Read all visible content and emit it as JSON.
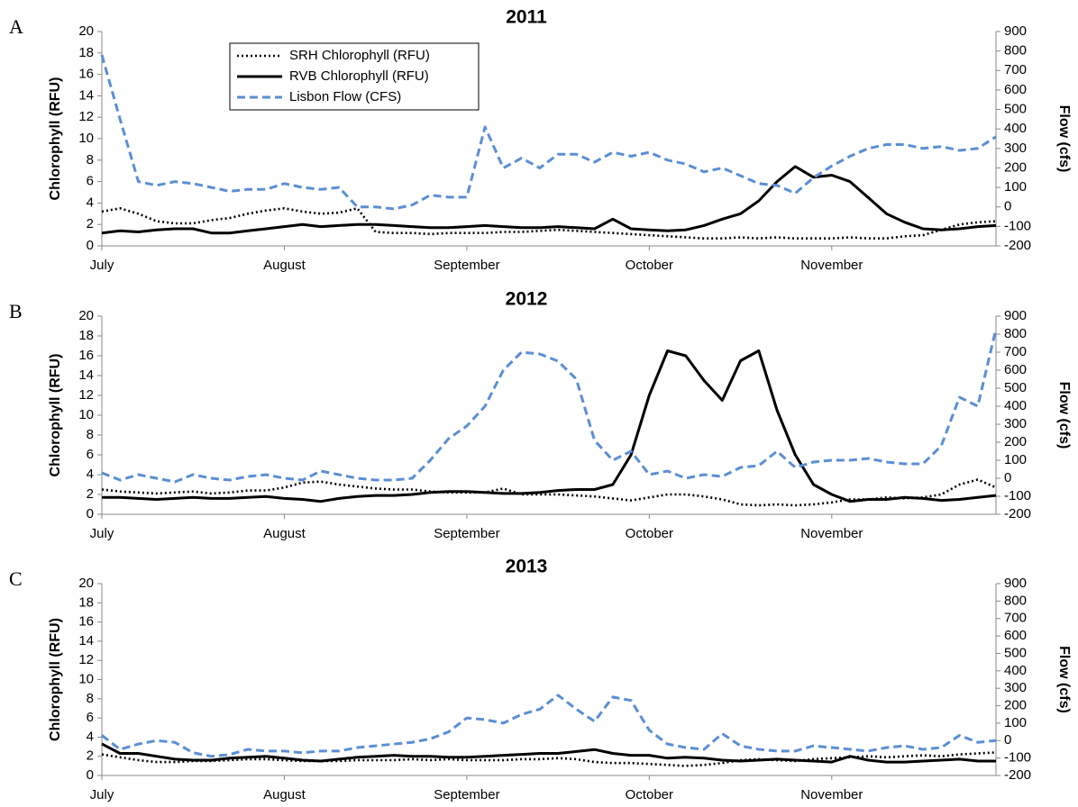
{
  "chart_data": [
    {
      "type": "line",
      "panel": "A",
      "title": "2011",
      "ylabel": "Chlorophyll (RFU)",
      "y2label": "Flow (cfs)",
      "legend": "upper left",
      "categories": [
        "July",
        null,
        null,
        null,
        null,
        null,
        null,
        null,
        null,
        null,
        "August",
        null,
        null,
        null,
        null,
        null,
        null,
        null,
        null,
        null,
        "September",
        null,
        null,
        null,
        null,
        null,
        null,
        null,
        null,
        null,
        "October",
        null,
        null,
        null,
        null,
        null,
        null,
        null,
        null,
        null,
        "November",
        null,
        null,
        null,
        null,
        null,
        null,
        null,
        null,
        null
      ],
      "ylim": [
        0,
        20
      ],
      "yticks": [
        0,
        2,
        4,
        6,
        8,
        10,
        12,
        14,
        16,
        18,
        20
      ],
      "y2lim": [
        -200,
        900
      ],
      "y2ticks": [
        -200,
        -100,
        0,
        100,
        200,
        300,
        400,
        500,
        600,
        700,
        800,
        900
      ],
      "series": [
        {
          "name": "SRH Chlorophyll (RFU)",
          "color": "#000000",
          "style": "dotted",
          "values": [
            3.2,
            3.5,
            3.0,
            2.3,
            2.1,
            2.1,
            2.4,
            2.6,
            3.0,
            3.3,
            3.5,
            3.2,
            3.0,
            3.1,
            3.5,
            1.3,
            1.2,
            1.2,
            1.1,
            1.2,
            1.2,
            1.2,
            1.3,
            1.3,
            1.4,
            1.5,
            1.4,
            1.3,
            1.2,
            1.1,
            1.0,
            0.9,
            0.8,
            0.7,
            0.7,
            0.8,
            0.7,
            0.8,
            0.7,
            0.7,
            0.7,
            0.8,
            0.7,
            0.7,
            0.9,
            1.0,
            1.5,
            2.0,
            2.2,
            2.3
          ]
        },
        {
          "name": "RVB Chlorophyll (RFU)",
          "color": "#000000",
          "style": "solid",
          "values": [
            1.2,
            1.4,
            1.3,
            1.5,
            1.6,
            1.6,
            1.2,
            1.2,
            1.4,
            1.6,
            1.8,
            2.0,
            1.8,
            1.9,
            2.0,
            2.0,
            1.9,
            1.8,
            1.7,
            1.7,
            1.8,
            1.9,
            1.8,
            1.7,
            1.7,
            1.8,
            1.7,
            1.6,
            2.5,
            1.6,
            1.5,
            1.4,
            1.5,
            1.9,
            2.5,
            3.0,
            4.2,
            6.0,
            7.4,
            6.4,
            6.6,
            6.0,
            4.5,
            3.0,
            2.2,
            1.6,
            1.5,
            1.6,
            1.8,
            1.9
          ]
        },
        {
          "name": "Lisbon Flow (CFS)",
          "color": "#5b8ed4",
          "style": "dashed",
          "axis": "y2",
          "values": [
            780,
            450,
            130,
            110,
            130,
            120,
            100,
            80,
            90,
            90,
            120,
            100,
            90,
            100,
            0,
            0,
            -10,
            10,
            60,
            50,
            50,
            410,
            200,
            250,
            200,
            270,
            270,
            230,
            280,
            260,
            280,
            240,
            220,
            180,
            200,
            160,
            120,
            110,
            70,
            150,
            210,
            260,
            300,
            320,
            320,
            300,
            310,
            290,
            300,
            360
          ]
        }
      ]
    },
    {
      "type": "line",
      "panel": "B",
      "title": "2012",
      "ylabel": "Chlorophyll (RFU)",
      "y2label": "Flow (cfs)",
      "categories": [
        "July",
        null,
        null,
        null,
        null,
        null,
        null,
        null,
        null,
        null,
        "August",
        null,
        null,
        null,
        null,
        null,
        null,
        null,
        null,
        null,
        "September",
        null,
        null,
        null,
        null,
        null,
        null,
        null,
        null,
        null,
        "October",
        null,
        null,
        null,
        null,
        null,
        null,
        null,
        null,
        null,
        "November",
        null,
        null,
        null,
        null,
        null,
        null,
        null,
        null,
        null
      ],
      "ylim": [
        0,
        20
      ],
      "yticks": [
        0,
        2,
        4,
        6,
        8,
        10,
        12,
        14,
        16,
        18,
        20
      ],
      "y2lim": [
        -200,
        900
      ],
      "y2ticks": [
        -200,
        -100,
        0,
        100,
        200,
        300,
        400,
        500,
        600,
        700,
        800,
        900
      ],
      "series": [
        {
          "color": "#000000",
          "style": "dotted",
          "values": [
            2.5,
            2.3,
            2.2,
            2.1,
            2.2,
            2.3,
            2.1,
            2.2,
            2.4,
            2.4,
            2.7,
            3.2,
            3.3,
            3.0,
            2.8,
            2.6,
            2.5,
            2.5,
            2.3,
            2.2,
            2.2,
            2.2,
            2.6,
            2.0,
            2.0,
            2.0,
            1.9,
            1.8,
            1.6,
            1.4,
            1.7,
            2.0,
            2.0,
            1.8,
            1.5,
            1.0,
            0.9,
            1.0,
            0.9,
            1.0,
            1.2,
            1.5,
            1.5,
            1.7,
            1.6,
            1.7,
            2.0,
            3.0,
            3.5,
            2.7
          ]
        },
        {
          "color": "#000000",
          "style": "solid",
          "values": [
            1.7,
            1.7,
            1.6,
            1.5,
            1.6,
            1.7,
            1.6,
            1.6,
            1.7,
            1.8,
            1.6,
            1.5,
            1.3,
            1.6,
            1.8,
            1.9,
            1.9,
            2.0,
            2.2,
            2.3,
            2.3,
            2.2,
            2.1,
            2.1,
            2.2,
            2.4,
            2.5,
            2.5,
            3.0,
            6.0,
            12.0,
            16.5,
            16.0,
            13.5,
            11.5,
            15.5,
            16.5,
            10.5,
            6.0,
            3.0,
            2.0,
            1.3,
            1.5,
            1.5,
            1.7,
            1.6,
            1.4,
            1.5,
            1.7,
            1.9
          ]
        },
        {
          "color": "#5b8ed4",
          "style": "dashed",
          "axis": "y2",
          "values": [
            30,
            -10,
            20,
            0,
            -20,
            20,
            0,
            -10,
            10,
            20,
            0,
            -10,
            40,
            20,
            0,
            -10,
            -10,
            0,
            100,
            220,
            290,
            400,
            600,
            700,
            690,
            650,
            550,
            210,
            100,
            150,
            20,
            40,
            0,
            20,
            10,
            60,
            70,
            150,
            60,
            90,
            100,
            100,
            110,
            90,
            80,
            80,
            180,
            450,
            400,
            830
          ]
        }
      ]
    },
    {
      "type": "line",
      "panel": "C",
      "title": "2013",
      "ylabel": "Chlorophyll (RFU)",
      "y2label": "Flow (cfs)",
      "categories": [
        "July",
        null,
        null,
        null,
        null,
        null,
        null,
        null,
        null,
        null,
        "August",
        null,
        null,
        null,
        null,
        null,
        null,
        null,
        null,
        null,
        "September",
        null,
        null,
        null,
        null,
        null,
        null,
        null,
        null,
        null,
        "October",
        null,
        null,
        null,
        null,
        null,
        null,
        null,
        null,
        null,
        "November",
        null,
        null,
        null,
        null,
        null,
        null,
        null,
        null,
        null
      ],
      "ylim": [
        0,
        20
      ],
      "yticks": [
        0,
        2,
        4,
        6,
        8,
        10,
        12,
        14,
        16,
        18,
        20
      ],
      "y2lim": [
        -200,
        900
      ],
      "y2ticks": [
        -200,
        -100,
        0,
        100,
        200,
        300,
        400,
        500,
        600,
        700,
        800,
        900
      ],
      "series": [
        {
          "color": "#000000",
          "style": "dotted",
          "values": [
            2.2,
            1.9,
            1.6,
            1.4,
            1.4,
            1.5,
            1.5,
            1.6,
            1.7,
            1.7,
            1.6,
            1.5,
            1.5,
            1.5,
            1.6,
            1.6,
            1.6,
            1.7,
            1.6,
            1.7,
            1.6,
            1.6,
            1.6,
            1.7,
            1.7,
            1.8,
            1.7,
            1.4,
            1.3,
            1.3,
            1.2,
            1.1,
            1.0,
            1.1,
            1.3,
            1.6,
            1.7,
            1.6,
            1.5,
            1.7,
            1.8,
            1.9,
            2.0,
            1.9,
            2.0,
            2.1,
            2.0,
            2.2,
            2.3,
            2.4
          ]
        },
        {
          "color": "#000000",
          "style": "solid",
          "values": [
            3.3,
            2.3,
            2.3,
            2.0,
            1.7,
            1.6,
            1.6,
            1.8,
            1.9,
            2.0,
            1.8,
            1.6,
            1.5,
            1.7,
            1.9,
            2.0,
            2.1,
            2.0,
            2.0,
            1.9,
            1.9,
            2.0,
            2.1,
            2.2,
            2.3,
            2.3,
            2.5,
            2.7,
            2.3,
            2.1,
            2.1,
            1.8,
            1.9,
            1.8,
            1.6,
            1.5,
            1.6,
            1.7,
            1.6,
            1.5,
            1.4,
            2.0,
            1.6,
            1.4,
            1.4,
            1.5,
            1.6,
            1.7,
            1.5,
            1.5
          ]
        },
        {
          "color": "#5b8ed4",
          "style": "dashed",
          "axis": "y2",
          "values": [
            30,
            -50,
            -20,
            0,
            -10,
            -70,
            -90,
            -80,
            -50,
            -60,
            -60,
            -70,
            -60,
            -60,
            -40,
            -30,
            -20,
            -10,
            10,
            50,
            130,
            120,
            100,
            150,
            180,
            260,
            180,
            110,
            250,
            230,
            60,
            -20,
            -40,
            -50,
            40,
            -30,
            -50,
            -60,
            -60,
            -30,
            -40,
            -50,
            -60,
            -40,
            -30,
            -50,
            -40,
            30,
            -10,
            0
          ]
        }
      ]
    }
  ]
}
